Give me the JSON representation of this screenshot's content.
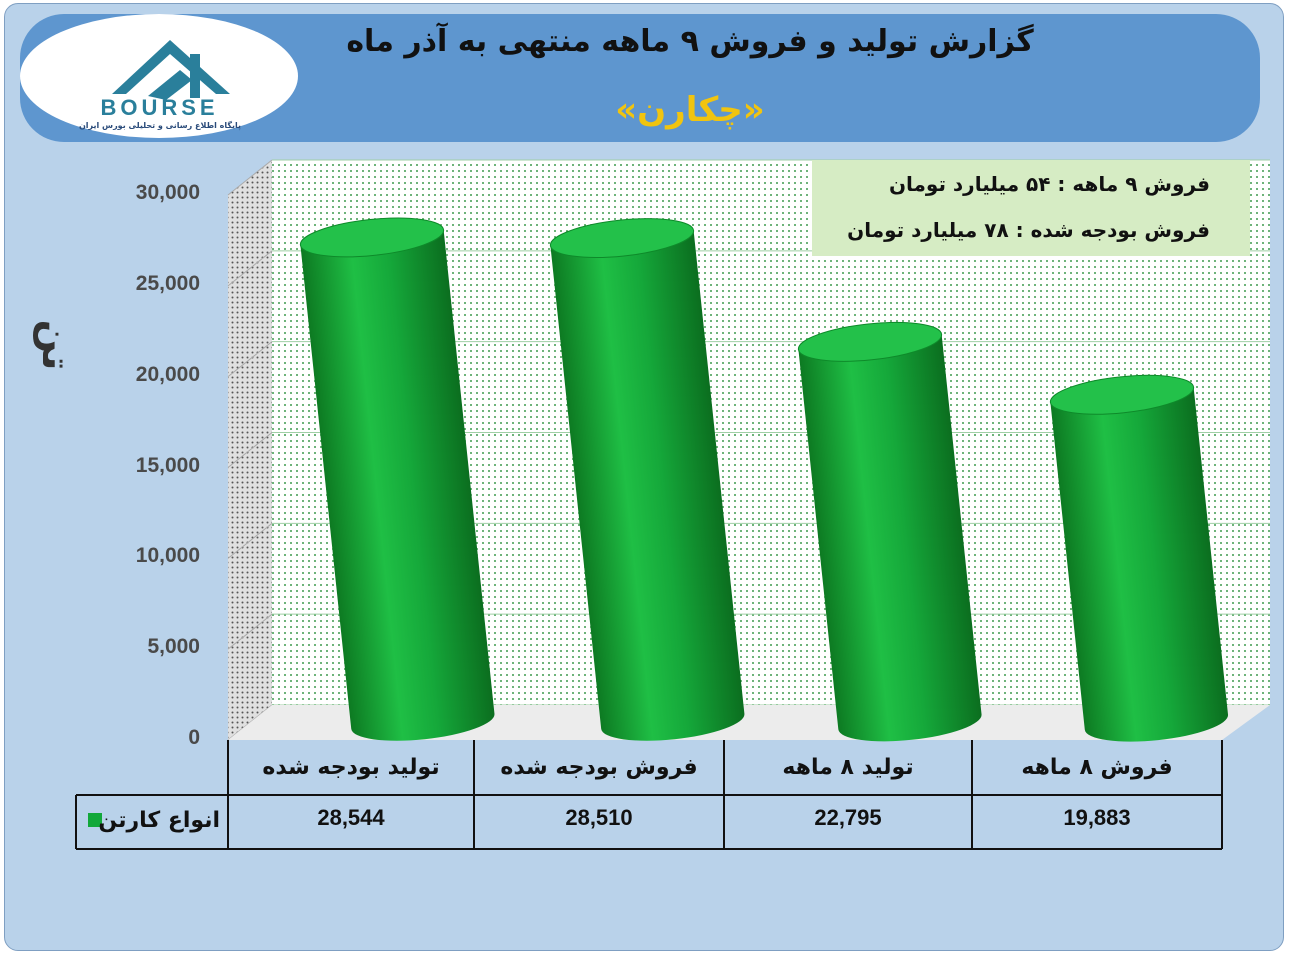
{
  "header": {
    "title": "گزارش تولید و فروش ۹ ماهه منتهی به آذر ماه",
    "subtitle": "«چکارن»"
  },
  "logo": {
    "text": "BOURSE",
    "sub": "پایگاه اطلاع رسانی و تحلیلی بورس ایران"
  },
  "info": {
    "line1": "فروش ۹ ماهه : ۵۴ میلیارد تومان",
    "line2": "فروش بودجه شده : ۷۸ میلیارد تومان"
  },
  "chart_data": {
    "type": "bar",
    "title": "گزارش تولید و فروش ۹ ماهه منتهی به آذر ماه",
    "ylabel": "تن",
    "ylim": [
      0,
      30000
    ],
    "yticks": [
      "0",
      "5,000",
      "10,000",
      "15,000",
      "20,000",
      "25,000",
      "30,000"
    ],
    "categories": [
      "تولید بودجه شده",
      "فروش بودجه شده",
      "تولید ۸ ماهه",
      "فروش ۸ ماهه"
    ],
    "series": [
      {
        "name": "انواع کارتن",
        "values": [
          28544,
          28510,
          22795,
          19883
        ],
        "color": "#12a83a"
      }
    ],
    "value_labels": [
      "28,544",
      "28,510",
      "22,795",
      "19,883"
    ],
    "grid": true,
    "legend": "table"
  }
}
